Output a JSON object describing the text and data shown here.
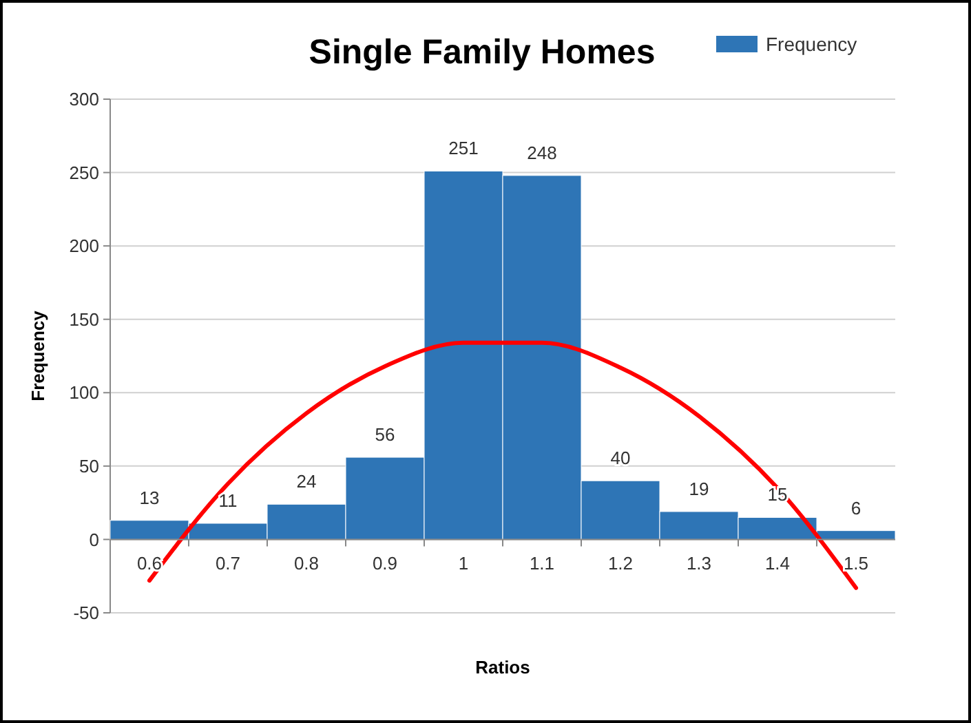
{
  "chart_data": {
    "type": "bar",
    "title": "Single Family Homes",
    "xlabel": "Ratios",
    "ylabel": "Frequency",
    "categories": [
      "0.6",
      "0.7",
      "0.8",
      "0.9",
      "1",
      "1.1",
      "1.2",
      "1.3",
      "1.4",
      "1.5"
    ],
    "series": [
      {
        "name": "Frequency",
        "color": "#2e75b6",
        "values": [
          13,
          11,
          24,
          56,
          251,
          248,
          40,
          19,
          15,
          6
        ],
        "value_labels": [
          "13",
          "11",
          "24",
          "56",
          "251",
          "248",
          "40",
          "19",
          "15",
          "6"
        ]
      },
      {
        "type": "line",
        "color": "#ff0000",
        "values": [
          -28,
          38,
          86,
          118,
          134,
          134,
          117,
          84,
          35,
          -33
        ]
      }
    ],
    "ylim": [
      -50,
      300
    ],
    "yticks": [
      -50,
      0,
      50,
      100,
      150,
      200,
      250,
      300
    ],
    "grid": "y",
    "legend": "top right",
    "marker": "none",
    "line_style": "solid"
  }
}
